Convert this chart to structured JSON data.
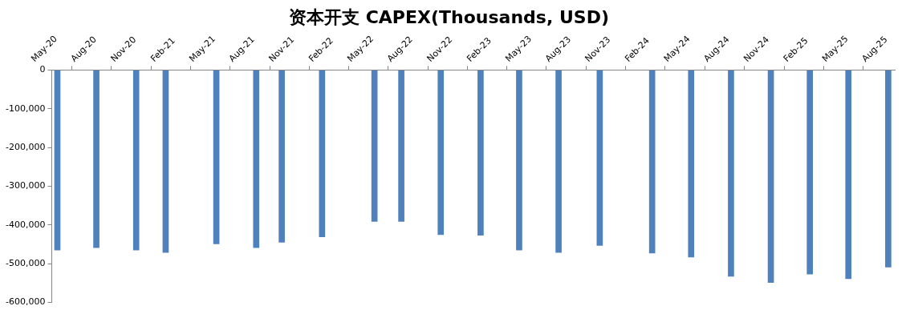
{
  "chart_data": {
    "type": "bar",
    "title": "资本开支 CAPEX(Thousands, USD)",
    "x": [
      "2020-05-14",
      "2020-08-12",
      "2020-11-12",
      "2021-01-19",
      "2021-05-16",
      "2021-08-16",
      "2021-10-14",
      "2022-01-15",
      "2022-05-16",
      "2022-07-17",
      "2022-10-16",
      "2023-01-16",
      "2023-04-15",
      "2023-07-15",
      "2023-10-18",
      "2024-02-16",
      "2024-05-16",
      "2024-08-16",
      "2024-11-16",
      "2025-02-14",
      "2025-05-14",
      "2025-08-14"
    ],
    "values": [
      -465000,
      -459000,
      -465000,
      -471000,
      -449000,
      -459000,
      -445000,
      -431000,
      -391000,
      -391000,
      -425000,
      -427000,
      -465000,
      -471000,
      -453000,
      -473000,
      -483000,
      -533000,
      -549000,
      -527000,
      -539000,
      -509000
    ],
    "color": "#4f81bd",
    "xlim": [
      "2020-05-01",
      "2025-08-29"
    ],
    "xticks": [
      {
        "value": "2020-05-01",
        "label": "May-20"
      },
      {
        "value": "2020-08-01",
        "label": "Aug-20"
      },
      {
        "value": "2020-11-01",
        "label": "Nov-20"
      },
      {
        "value": "2021-02-01",
        "label": "Feb-21"
      },
      {
        "value": "2021-05-01",
        "label": "May-21"
      },
      {
        "value": "2021-08-01",
        "label": "Aug-21"
      },
      {
        "value": "2021-11-01",
        "label": "Nov-21"
      },
      {
        "value": "2022-02-01",
        "label": "Feb-22"
      },
      {
        "value": "2022-05-01",
        "label": "May-22"
      },
      {
        "value": "2022-08-01",
        "label": "Aug-22"
      },
      {
        "value": "2022-11-01",
        "label": "Nov-22"
      },
      {
        "value": "2023-02-01",
        "label": "Feb-23"
      },
      {
        "value": "2023-05-01",
        "label": "May-23"
      },
      {
        "value": "2023-08-01",
        "label": "Aug-23"
      },
      {
        "value": "2023-11-01",
        "label": "Nov-23"
      },
      {
        "value": "2024-02-01",
        "label": "Feb-24"
      },
      {
        "value": "2024-05-01",
        "label": "May-24"
      },
      {
        "value": "2024-08-01",
        "label": "Aug-24"
      },
      {
        "value": "2024-11-01",
        "label": "Nov-24"
      },
      {
        "value": "2025-02-01",
        "label": "Feb-25"
      },
      {
        "value": "2025-05-01",
        "label": "May-25"
      },
      {
        "value": "2025-08-01",
        "label": "Aug-25"
      }
    ],
    "ylim": [
      -600000,
      0
    ],
    "yticks": [
      {
        "value": -600000,
        "label": "-600,000"
      },
      {
        "value": -500000,
        "label": "-500,000"
      },
      {
        "value": -400000,
        "label": "-400,000"
      },
      {
        "value": -300000,
        "label": "-300,000"
      },
      {
        "value": -200000,
        "label": "-200,000"
      },
      {
        "value": -100000,
        "label": "-100,000"
      },
      0
    ],
    "legend": false
  }
}
